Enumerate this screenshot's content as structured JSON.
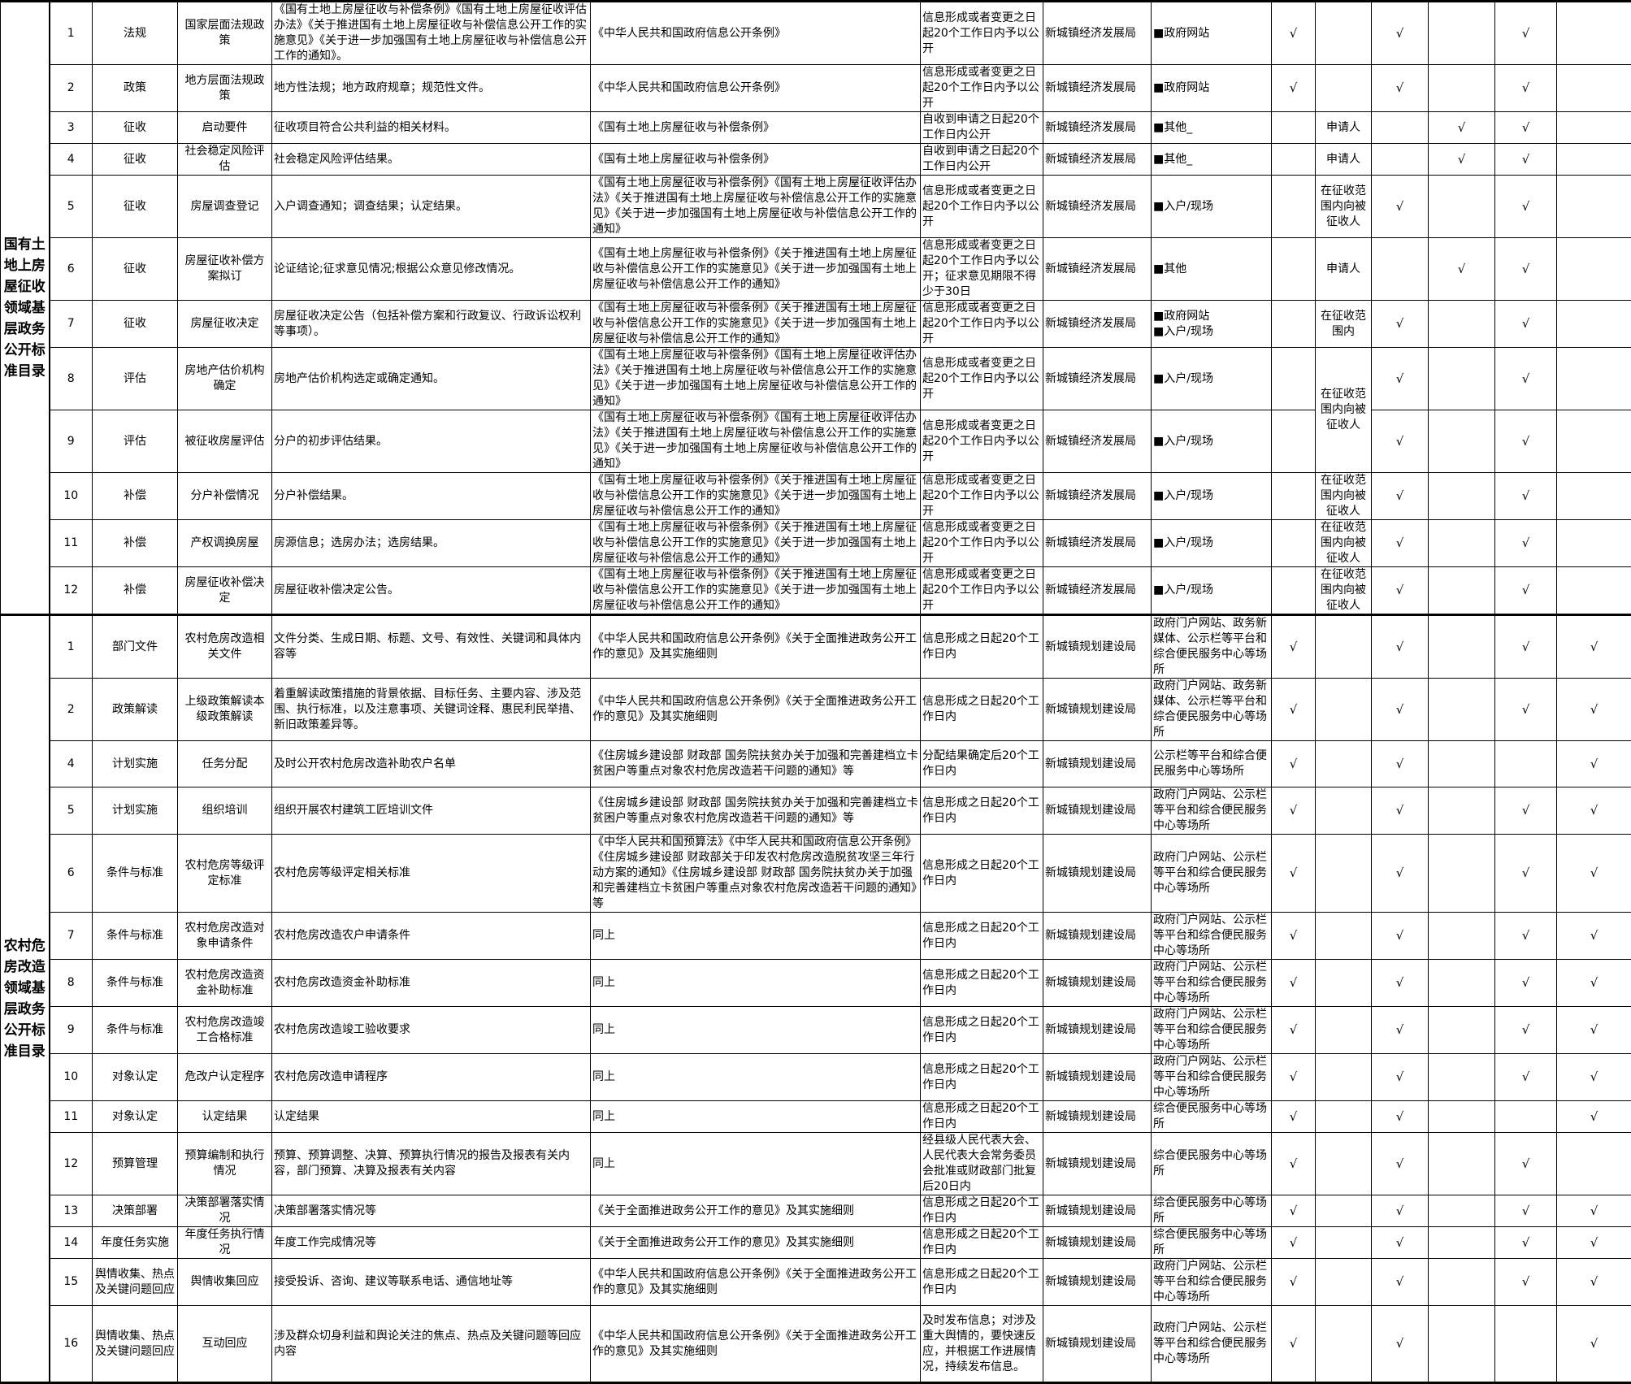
{
  "sections": [
    {
      "title": "国有土地上房屋征收领域基层政务公开标准目录",
      "rows": [
        {
          "no": "1",
          "type": "法规",
          "item": "国家层面法规政策",
          "content": "《国有土地上房屋征收与补偿条例》《国有土地上房屋征收评估办法》《关于推进国有土地上房屋征收与补偿信息公开工作的实施意见》《关于进一步加强国有土地上房屋征收与补偿信息公开工作的通知》。",
          "basis": "《中华人民共和国政府信息公开条例》",
          "time": "信息形成或者变更之日起20个工作日内予以公开",
          "subject": "新城镇经济发展局",
          "channel": "■政府网站",
          "target": "",
          "checks": [
            true,
            true,
            false,
            true,
            false
          ]
        },
        {
          "no": "2",
          "type": "政策",
          "item": "地方层面法规政策",
          "content": "地方性法规；地方政府规章；规范性文件。",
          "basis": "《中华人民共和国政府信息公开条例》",
          "time": "信息形成或者变更之日起20个工作日内予以公开",
          "subject": "新城镇经济发展局",
          "channel": "■政府网站",
          "target": "",
          "checks": [
            true,
            true,
            false,
            true,
            false
          ]
        },
        {
          "no": "3",
          "type": "征收",
          "item": "启动要件",
          "content": "征收项目符合公共利益的相关材料。",
          "basis": "《国有土地上房屋征收与补偿条例》",
          "time": "自收到申请之日起20个工作日内公开",
          "subject": "新城镇经济发展局",
          "channel": "■其他_",
          "target": "申请人",
          "checks": [
            false,
            false,
            true,
            true,
            false
          ]
        },
        {
          "no": "4",
          "type": "征收",
          "item": "社会稳定风险评估",
          "content": "社会稳定风险评估结果。",
          "basis": "《国有土地上房屋征收与补偿条例》",
          "time": "自收到申请之日起20个工作日内公开",
          "subject": "新城镇经济发展局",
          "channel": "■其他_",
          "target": "申请人",
          "checks": [
            false,
            false,
            true,
            true,
            false
          ]
        },
        {
          "no": "5",
          "type": "征收",
          "item": "房屋调查登记",
          "content": "入户调查通知；调查结果；认定结果。",
          "basis": "《国有土地上房屋征收与补偿条例》《国有土地上房屋征收评估办法》《关于推进国有土地上房屋征收与补偿信息公开工作的实施意见》《关于进一步加强国有土地上房屋征收与补偿信息公开工作的通知》",
          "time": "信息形成或者变更之日起20个工作日内予以公开",
          "subject": "新城镇经济发展局",
          "channel": "■入户/现场",
          "target": "在征收范围内向被征收人",
          "checks": [
            false,
            true,
            false,
            true,
            false
          ]
        },
        {
          "no": "6",
          "type": "征收",
          "item": "房屋征收补偿方案拟订",
          "content": "论证结论;征求意见情况;根据公众意见修改情况。",
          "basis": "《国有土地上房屋征收与补偿条例》《关于推进国有土地上房屋征收与补偿信息公开工作的实施意见》《关于进一步加强国有土地上房屋征收与补偿信息公开工作的通知》",
          "time": "信息形成或者变更之日起20个工作日内予以公开；征求意见期限不得少于30日",
          "subject": "新城镇经济发展局",
          "channel": "■其他",
          "target": "申请人",
          "checks": [
            false,
            false,
            true,
            true,
            false
          ]
        },
        {
          "no": "7",
          "type": "征收",
          "item": "房屋征收决定",
          "content": "房屋征收决定公告（包括补偿方案和行政复议、行政诉讼权利等事项）。",
          "basis": "《国有土地上房屋征收与补偿条例》《关于推进国有土地上房屋征收与补偿信息公开工作的实施意见》《关于进一步加强国有土地上房屋征收与补偿信息公开工作的通知》",
          "time": "信息形成或者变更之日起20个工作日内予以公开",
          "subject": "新城镇经济发展局",
          "channel": "■政府网站\n■入户/现场",
          "target": "在征收范围内",
          "checks": [
            false,
            true,
            false,
            true,
            false
          ]
        },
        {
          "no": "8",
          "type": "评估",
          "item": "房地产估价机构确定",
          "content": "房地产估价机构选定或确定通知。",
          "basis": "《国有土地上房屋征收与补偿条例》《国有土地上房屋征收评估办法》《关于推进国有土地上房屋征收与补偿信息公开工作的实施意见》《关于进一步加强国有土地上房屋征收与补偿信息公开工作的通知》",
          "time": "信息形成或者变更之日起20个工作日内予以公开",
          "subject": "新城镇经济发展局",
          "channel": "■入户/现场",
          "target": "在征收范围内向被征收人",
          "checks": [
            false,
            true,
            false,
            true,
            false
          ]
        },
        {
          "no": "9",
          "type": "评估",
          "item": "被征收房屋评估",
          "content": "分户的初步评估结果。",
          "basis": "《国有土地上房屋征收与补偿条例》《国有土地上房屋征收评估办法》《关于推进国有土地上房屋征收与补偿信息公开工作的实施意见》《关于进一步加强国有土地上房屋征收与补偿信息公开工作的通知》",
          "time": "信息形成或者变更之日起20个工作日内予以公开",
          "subject": "新城镇经济发展局",
          "channel": "■入户/现场",
          "target": "",
          "checks": [
            false,
            true,
            false,
            true,
            false
          ]
        },
        {
          "no": "10",
          "type": "补偿",
          "item": "分户补偿情况",
          "content": "分户补偿结果。",
          "basis": "《国有土地上房屋征收与补偿条例》《关于推进国有土地上房屋征收与补偿信息公开工作的实施意见》《关于进一步加强国有土地上房屋征收与补偿信息公开工作的通知》",
          "time": "信息形成或者变更之日起20个工作日内予以公开",
          "subject": "新城镇经济发展局",
          "channel": "■入户/现场",
          "target": "在征收范围内向被征收人",
          "checks": [
            false,
            true,
            false,
            true,
            false
          ]
        },
        {
          "no": "11",
          "type": "补偿",
          "item": "产权调换房屋",
          "content": "房源信息；选房办法；选房结果。",
          "basis": "《国有土地上房屋征收与补偿条例》《关于推进国有土地上房屋征收与补偿信息公开工作的实施意见》《关于进一步加强国有土地上房屋征收与补偿信息公开工作的通知》",
          "time": "信息形成或者变更之日起20个工作日内予以公开",
          "subject": "新城镇经济发展局",
          "channel": "■入户/现场",
          "target": "在征收范围内向被征收人",
          "checks": [
            false,
            true,
            false,
            true,
            false
          ]
        },
        {
          "no": "12",
          "type": "补偿",
          "item": "房屋征收补偿决定",
          "content": "房屋征收补偿决定公告。",
          "basis": "《国有土地上房屋征收与补偿条例》《关于推进国有土地上房屋征收与补偿信息公开工作的实施意见》《关于进一步加强国有土地上房屋征收与补偿信息公开工作的通知》",
          "time": "信息形成或者变更之日起20个工作日内予以公开",
          "subject": "新城镇经济发展局",
          "channel": "■入户/现场",
          "target": "在征收范围内向被征收人",
          "checks": [
            false,
            true,
            false,
            true,
            false
          ]
        }
      ]
    },
    {
      "title": "农村危房改造领域基层政务公开标准目录",
      "rows": [
        {
          "no": "1",
          "type": "部门文件",
          "item": "农村危房改造相关文件",
          "content": "文件分类、生成日期、标题、文号、有效性、关键词和具体内容等",
          "basis": "《中华人民共和国政府信息公开条例》《关于全面推进政务公开工作的意见》及其实施细则",
          "time": "信息形成之日起20个工作日内",
          "subject": "新城镇规划建设局",
          "channel": "政府门户网站、政务新媒体、公示栏等平台和综合便民服务中心等场所",
          "target": "",
          "checks": [
            true,
            true,
            false,
            true,
            true
          ]
        },
        {
          "no": "2",
          "type": "政策解读",
          "item": "上级政策解读本级政策解读",
          "content": "着重解读政策措施的背景依据、目标任务、主要内容、涉及范围、执行标准，以及注意事项、关键词诠释、惠民利民举措、新旧政策差异等。",
          "basis": "《中华人民共和国政府信息公开条例》《关于全面推进政务公开工作的意见》及其实施细则",
          "time": "信息形成之日起20个工作日内",
          "subject": "新城镇规划建设局",
          "channel": "政府门户网站、政务新媒体、公示栏等平台和综合便民服务中心等场所",
          "target": "",
          "checks": [
            true,
            true,
            false,
            true,
            true
          ]
        },
        {
          "no": "4",
          "type": "计划实施",
          "item": "任务分配",
          "content": "及时公开农村危房改造补助农户名单",
          "basis": "《住房城乡建设部 财政部 国务院扶贫办关于加强和完善建档立卡贫困户等重点对象农村危房改造若干问题的通知》等",
          "time": "分配结果确定后20个工作日内",
          "subject": "新城镇规划建设局",
          "channel": "公示栏等平台和综合便民服务中心等场所",
          "target": "",
          "checks": [
            true,
            true,
            false,
            false,
            true
          ]
        },
        {
          "no": "5",
          "type": "计划实施",
          "item": "组织培训",
          "content": "组织开展农村建筑工匠培训文件",
          "basis": "《住房城乡建设部 财政部 国务院扶贫办关于加强和完善建档立卡贫困户等重点对象农村危房改造若干问题的通知》等",
          "time": "信息形成之日起20个工作日内",
          "subject": "新城镇规划建设局",
          "channel": "政府门户网站、公示栏等平台和综合便民服务中心等场所",
          "target": "",
          "checks": [
            true,
            true,
            false,
            true,
            true
          ]
        },
        {
          "no": "6",
          "type": "条件与标准",
          "item": "农村危房等级评定标准",
          "content": "农村危房等级评定相关标准",
          "basis": "《中华人民共和国预算法》《中华人民共和国政府信息公开条例》《住房城乡建设部 财政部关于印发农村危房改造脱贫攻坚三年行动方案的通知》《住房城乡建设部 财政部 国务院扶贫办关于加强和完善建档立卡贫困户等重点对象农村危房改造若干问题的通知》等",
          "time": "信息形成之日起20个工作日内",
          "subject": "新城镇规划建设局",
          "channel": "政府门户网站、公示栏等平台和综合便民服务中心等场所",
          "target": "",
          "checks": [
            true,
            true,
            false,
            true,
            true
          ]
        },
        {
          "no": "7",
          "type": "条件与标准",
          "item": "农村危房改造对象申请条件",
          "content": "农村危房改造农户申请条件",
          "basis": "同上",
          "time": "信息形成之日起20个工作日内",
          "subject": "新城镇规划建设局",
          "channel": "政府门户网站、公示栏等平台和综合便民服务中心等场所",
          "target": "",
          "checks": [
            true,
            true,
            false,
            true,
            true
          ]
        },
        {
          "no": "8",
          "type": "条件与标准",
          "item": "农村危房改造资金补助标准",
          "content": "农村危房改造资金补助标准",
          "basis": "同上",
          "time": "信息形成之日起20个工作日内",
          "subject": "新城镇规划建设局",
          "channel": "政府门户网站、公示栏等平台和综合便民服务中心等场所",
          "target": "",
          "checks": [
            true,
            true,
            false,
            true,
            true
          ]
        },
        {
          "no": "9",
          "type": "条件与标准",
          "item": "农村危房改造竣工合格标准",
          "content": "农村危房改造竣工验收要求",
          "basis": "同上",
          "time": "信息形成之日起20个工作日内",
          "subject": "新城镇规划建设局",
          "channel": "政府门户网站、公示栏等平台和综合便民服务中心等场所",
          "target": "",
          "checks": [
            true,
            true,
            false,
            true,
            true
          ]
        },
        {
          "no": "10",
          "type": "对象认定",
          "item": "危改户认定程序",
          "content": "农村危房改造申请程序",
          "basis": "同上",
          "time": "信息形成之日起20个工作日内",
          "subject": "新城镇规划建设局",
          "channel": "政府门户网站、公示栏等平台和综合便民服务中心等场所",
          "target": "",
          "checks": [
            true,
            true,
            false,
            true,
            true
          ]
        },
        {
          "no": "11",
          "type": "对象认定",
          "item": "认定结果",
          "content": "认定结果",
          "basis": "同上",
          "time": "信息形成之日起20个工作日内",
          "subject": "新城镇规划建设局",
          "channel": "综合便民服务中心等场所",
          "target": "",
          "checks": [
            true,
            true,
            false,
            false,
            true
          ]
        },
        {
          "no": "12",
          "type": "预算管理",
          "item": "预算编制和执行情况",
          "content": "预算、预算调整、决算、预算执行情况的报告及报表有关内容，部门预算、决算及报表有关内容",
          "basis": "同上",
          "time": "经县级人民代表大会、人民代表大会常务委员会批准或财政部门批复后20日内",
          "subject": "新城镇规划建设局",
          "channel": "综合便民服务中心等场所",
          "target": "",
          "checks": [
            true,
            true,
            false,
            true,
            false
          ]
        },
        {
          "no": "13",
          "type": "决策部署",
          "item": "决策部署落实情况",
          "content": "决策部署落实情况等",
          "basis": "《关于全面推进政务公开工作的意见》及其实施细则",
          "time": "信息形成之日起20个工作日内",
          "subject": "新城镇规划建设局",
          "channel": "综合便民服务中心等场所",
          "target": "",
          "checks": [
            true,
            true,
            false,
            true,
            true
          ]
        },
        {
          "no": "14",
          "type": "年度任务实施",
          "item": "年度任务执行情况",
          "content": "年度工作完成情况等",
          "basis": "《关于全面推进政务公开工作的意见》及其实施细则",
          "time": "信息形成之日起20个工作日内",
          "subject": "新城镇规划建设局",
          "channel": "综合便民服务中心等场所",
          "target": "",
          "checks": [
            true,
            true,
            false,
            true,
            true
          ]
        },
        {
          "no": "15",
          "type": "舆情收集、热点及关键问题回应",
          "item": "舆情收集回应",
          "content": "接受投诉、咨询、建议等联系电话、通信地址等",
          "basis": "《中华人民共和国政府信息公开条例》《关于全面推进政务公开工作的意见》及其实施细则",
          "time": "信息形成之日起20个工作日内",
          "subject": "新城镇规划建设局",
          "channel": "政府门户网站、公示栏等平台和综合便民服务中心等场所",
          "target": "",
          "checks": [
            true,
            true,
            false,
            true,
            true
          ]
        },
        {
          "no": "16",
          "type": "舆情收集、热点及关键问题回应",
          "item": "互动回应",
          "content": "涉及群众切身利益和舆论关注的焦点、热点及关键问题等回应内容",
          "basis": "《中华人民共和国政府信息公开条例》《关于全面推进政务公开工作的意见》及其实施细则",
          "time": "及时发布信息；对涉及重大舆情的，要快速反应，并根据工作进展情况，持续发布信息。",
          "subject": "新城镇规划建设局",
          "channel": "政府门户网站、公示栏等平台和综合便民服务中心等场所",
          "target": "",
          "checks": [
            true,
            true,
            false,
            false,
            true
          ]
        }
      ]
    }
  ],
  "check_mark": "√"
}
